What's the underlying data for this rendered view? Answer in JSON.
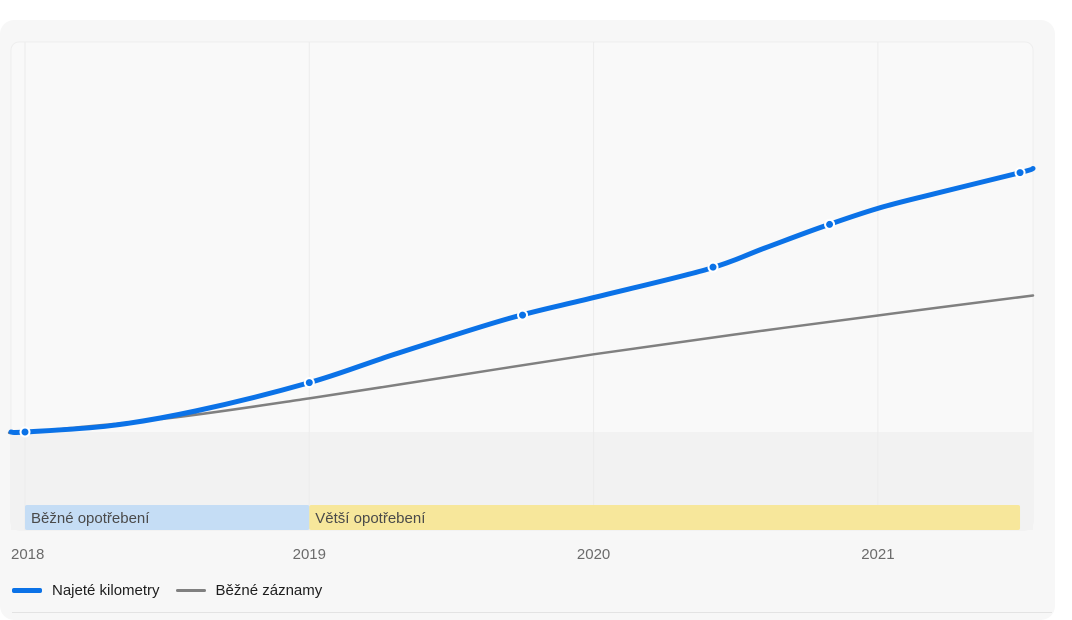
{
  "chart_data": {
    "type": "line",
    "x_ticks": [
      "2018",
      "2019",
      "2020",
      "2021"
    ],
    "x_range": [
      2017.95,
      2021.55
    ],
    "series": [
      {
        "name": "Najeté kilometry",
        "color": "#0b72e7",
        "style": "thick",
        "x": [
          2017.95,
          2018.0,
          2018.3,
          2018.6,
          2019.0,
          2019.3,
          2019.7,
          2020.0,
          2020.4,
          2020.6,
          2020.8,
          2021.0,
          2021.2,
          2021.5,
          2021.55
        ],
        "y": [
          0.0,
          0.0,
          0.06,
          0.2,
          0.47,
          0.74,
          1.08,
          1.28,
          1.55,
          1.75,
          1.95,
          2.13,
          2.27,
          2.47,
          2.51
        ],
        "marker_x": [
          2018.0,
          2019.0,
          2019.75,
          2020.42,
          2020.83,
          2021.5
        ]
      },
      {
        "name": "Běžné záznamy",
        "color": "#808080",
        "style": "thin",
        "x": [
          2017.95,
          2018.0,
          2018.5,
          2019.0,
          2019.5,
          2020.0,
          2020.5,
          2021.0,
          2021.55
        ],
        "y": [
          0.0,
          0.0,
          0.13,
          0.32,
          0.53,
          0.74,
          0.93,
          1.11,
          1.3
        ]
      }
    ],
    "bands": [
      {
        "label": "Běžné opotřebení",
        "from": 2018.0,
        "to": 2019.0,
        "color": "#c5ddf5"
      },
      {
        "label": "Větší opotřebení",
        "from": 2019.0,
        "to": 2021.5,
        "color": "#f7e79b"
      }
    ],
    "grid": true,
    "legend_position": "bottom-left"
  }
}
